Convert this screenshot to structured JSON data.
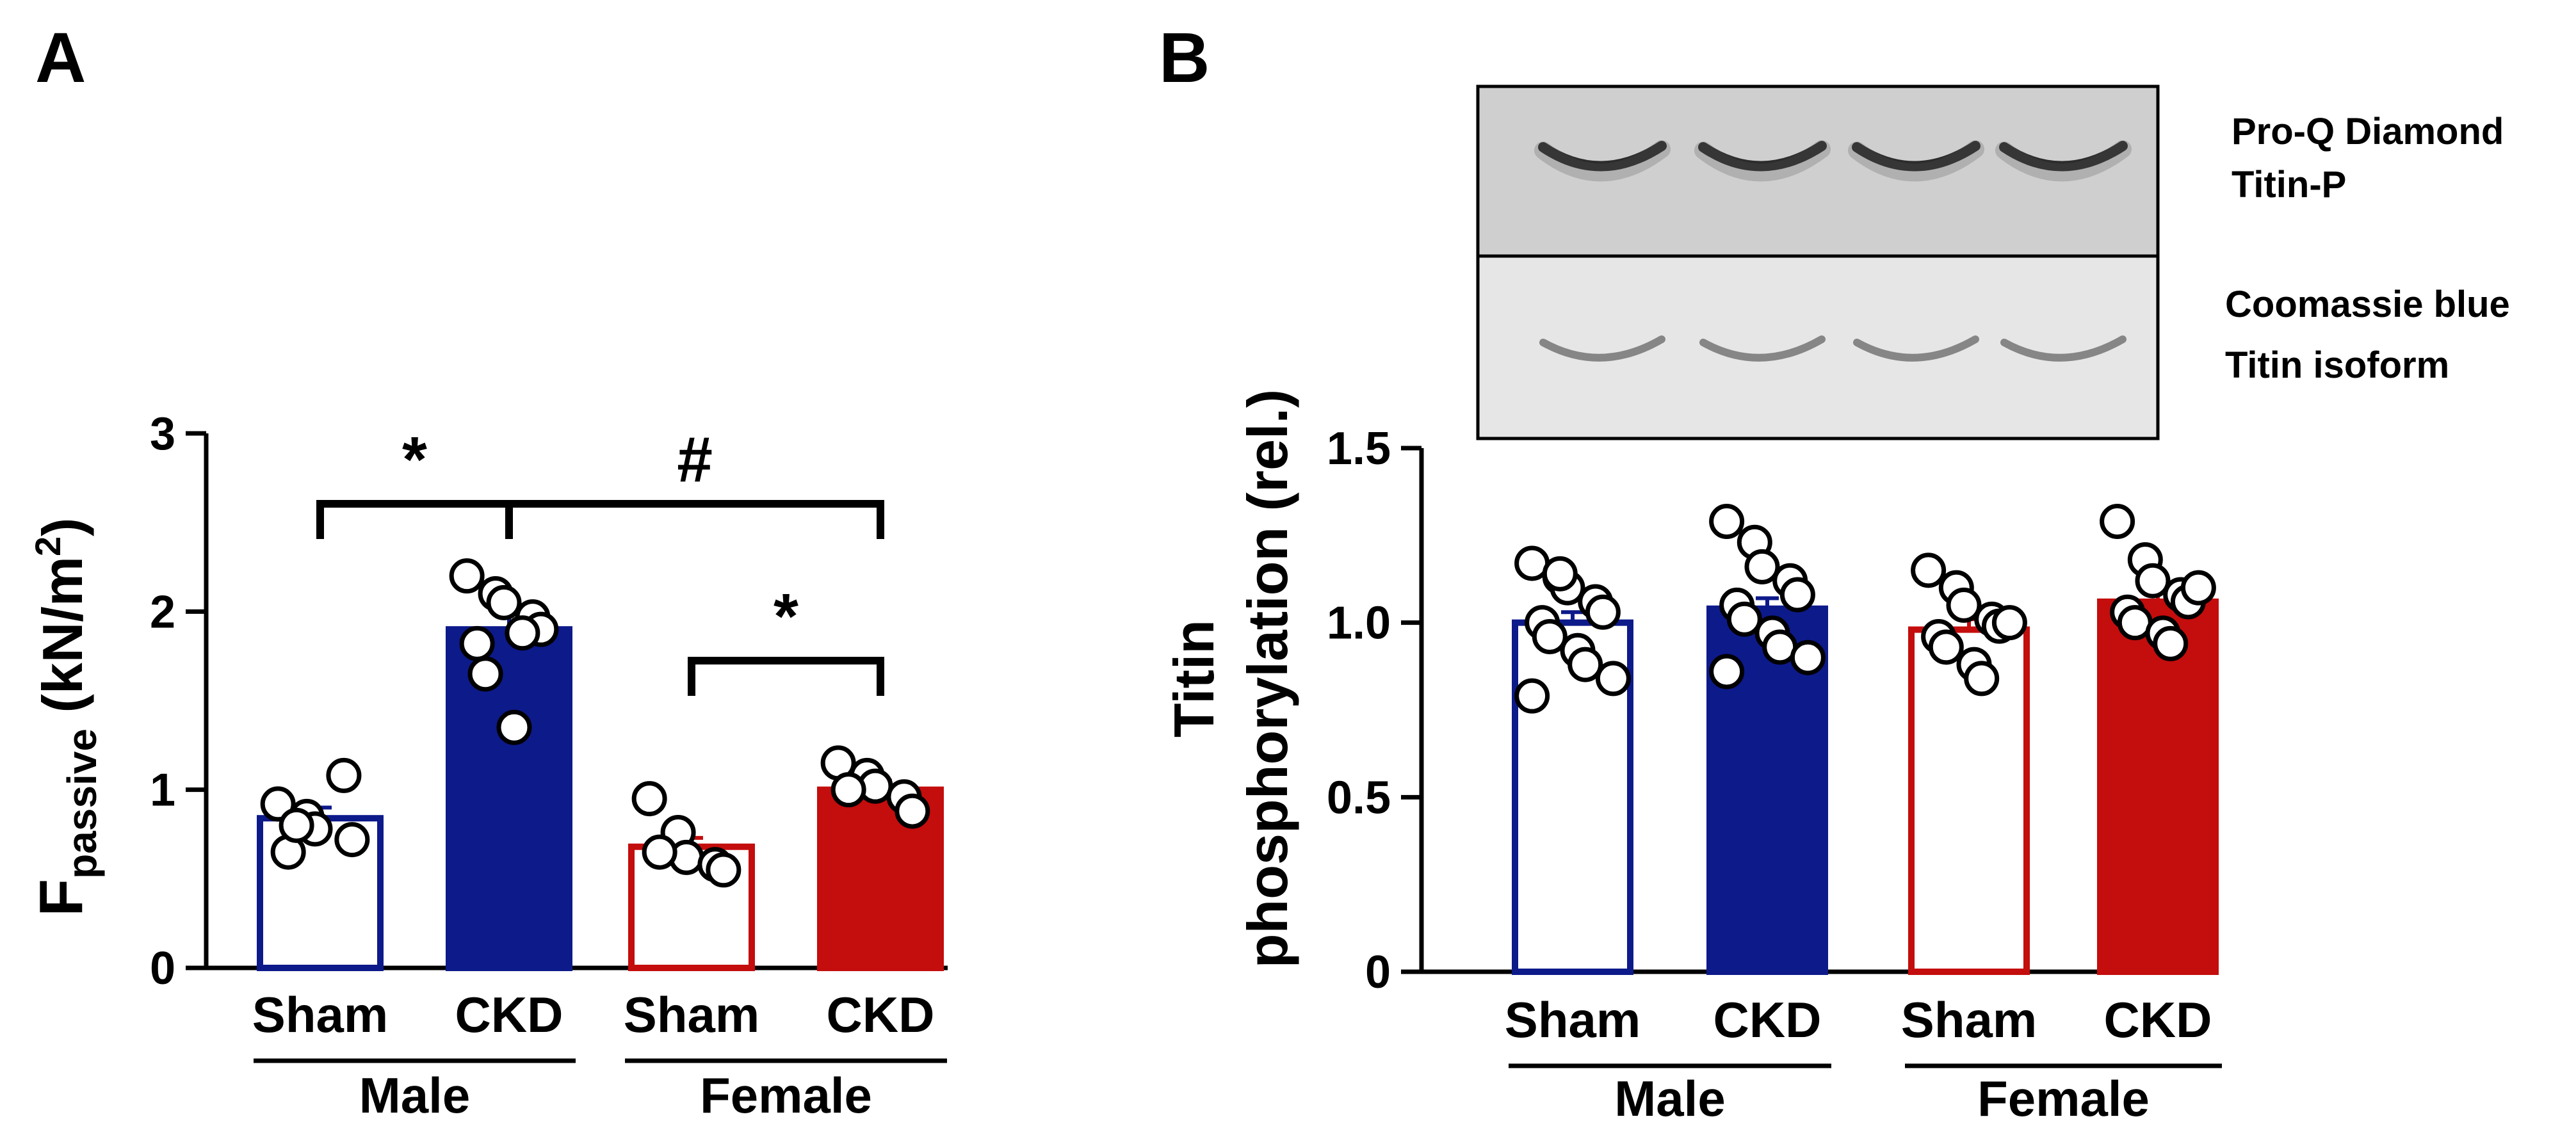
{
  "panels": {
    "a_letter": "A",
    "b_letter": "B"
  },
  "colors": {
    "male": "#0d1a8a",
    "female": "#c40d0d",
    "axis": "#000000"
  },
  "blot": {
    "row1_line1": "Pro-Q Diamond",
    "row1_line2": "Titin-P",
    "row2_line1": "Coomassie blue",
    "row2_line2": "Titin isoform"
  },
  "chart_data": [
    {
      "type": "bar",
      "panel": "A",
      "ylabel_main": "F",
      "ylabel_sub": "passive",
      "ylabel_unit_open": " (kN/m",
      "ylabel_unit_sup": "2",
      "ylabel_unit_close": ")",
      "ylim": [
        0,
        3
      ],
      "yticks": [
        "0",
        "1",
        "2",
        "3"
      ],
      "categories": [
        "Sham",
        "CKD",
        "Sham",
        "CKD"
      ],
      "groups": [
        "Male",
        "Female"
      ],
      "values": [
        0.84,
        1.9,
        0.68,
        1.0
      ],
      "sem": [
        0.06,
        0.09,
        0.05,
        0.05
      ],
      "fills": [
        "none",
        "male",
        "none",
        "female"
      ],
      "edges": [
        "male",
        "male",
        "female",
        "female"
      ],
      "points": [
        [
          0.92,
          0.85,
          0.78,
          1.08,
          0.72,
          0.65,
          0.8
        ],
        [
          2.2,
          2.1,
          2.05,
          1.97,
          1.9,
          1.82,
          1.65,
          1.35,
          1.88
        ],
        [
          0.95,
          0.76,
          0.62,
          0.58,
          0.55,
          0.65
        ],
        [
          1.15,
          1.08,
          1.02,
          0.96,
          0.88,
          1.0
        ]
      ],
      "significance": [
        {
          "from": 0,
          "to": 1,
          "label": "*"
        },
        {
          "from": 1,
          "to": 3,
          "label": "#"
        },
        {
          "from": 2,
          "to": 3,
          "label": "*"
        }
      ]
    },
    {
      "type": "bar",
      "panel": "B",
      "ylabel_line1": "Titin",
      "ylabel_line2": "phosphorylation (rel.)",
      "ylim": [
        0,
        1.5
      ],
      "yticks": [
        "0",
        "0.5",
        "1.0",
        "1.5"
      ],
      "categories": [
        "Sham",
        "CKD",
        "Sham",
        "CKD"
      ],
      "groups": [
        "Male",
        "Female"
      ],
      "values": [
        1.0,
        1.04,
        0.98,
        1.06
      ],
      "sem": [
        0.03,
        0.03,
        0.03,
        0.03
      ],
      "fills": [
        "none",
        "male",
        "none",
        "female"
      ],
      "edges": [
        "male",
        "male",
        "female",
        "female"
      ],
      "points": [
        [
          1.17,
          1.13,
          1.1,
          1.06,
          1.03,
          1.0,
          0.96,
          0.92,
          0.88,
          0.84,
          0.79,
          1.14
        ],
        [
          1.29,
          1.23,
          1.16,
          1.12,
          1.08,
          1.05,
          1.01,
          0.97,
          0.93,
          0.9,
          0.86
        ],
        [
          1.15,
          1.1,
          1.05,
          1.01,
          0.99,
          0.96,
          0.93,
          0.88,
          0.84,
          1.0
        ],
        [
          1.29,
          1.18,
          1.12,
          1.08,
          1.06,
          1.03,
          1.0,
          0.97,
          0.94,
          1.1
        ]
      ],
      "significance": []
    }
  ]
}
